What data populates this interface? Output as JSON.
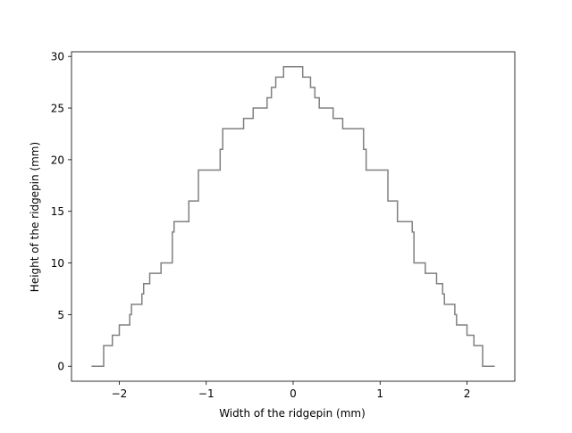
{
  "chart_data": {
    "type": "line",
    "title": "",
    "xlabel": "Width of the ridgepin (mm)",
    "ylabel": "Height of the ridgepin (mm)",
    "xlim": [
      -2.55,
      2.55
    ],
    "ylim": [
      -1.45,
      30.45
    ],
    "xticks": [
      -2,
      -1,
      0,
      1,
      2
    ],
    "xtick_labels": [
      "−2",
      "−1",
      "0",
      "1",
      "2"
    ],
    "yticks": [
      0,
      5,
      10,
      15,
      20,
      25,
      30
    ],
    "ytick_labels": [
      "0",
      "5",
      "10",
      "15",
      "20",
      "25",
      "30"
    ],
    "grid": false,
    "legend": false,
    "colors": {
      "line": "#808080",
      "axes": "#000000",
      "background": "#ffffff"
    },
    "series": [
      {
        "style": "steps",
        "x": [
          -2.32,
          -2.18,
          -2.18,
          -2.08,
          -2.08,
          -2.0,
          -2.0,
          -1.88,
          -1.88,
          -1.86,
          -1.86,
          -1.74,
          -1.74,
          -1.72,
          -1.72,
          -1.65,
          -1.65,
          -1.52,
          -1.52,
          -1.39,
          -1.39,
          -1.37,
          -1.37,
          -1.2,
          -1.2,
          -1.09,
          -1.09,
          -0.84,
          -0.84,
          -0.81,
          -0.81,
          -0.57,
          -0.57,
          -0.46,
          -0.46,
          -0.3,
          -0.3,
          -0.25,
          -0.25,
          -0.2,
          -0.2,
          -0.11,
          -0.11,
          0.11,
          0.11,
          0.2,
          0.2,
          0.25,
          0.25,
          0.3,
          0.3,
          0.46,
          0.46,
          0.57,
          0.57,
          0.81,
          0.81,
          0.84,
          0.84,
          1.09,
          1.09,
          1.2,
          1.2,
          1.37,
          1.37,
          1.39,
          1.39,
          1.52,
          1.52,
          1.65,
          1.65,
          1.72,
          1.72,
          1.74,
          1.74,
          1.86,
          1.86,
          1.88,
          1.88,
          2.0,
          2.0,
          2.08,
          2.08,
          2.18,
          2.18,
          2.32
        ],
        "y": [
          0,
          0,
          2,
          2,
          3,
          3,
          4,
          4,
          5,
          5,
          6,
          6,
          7,
          7,
          8,
          8,
          9,
          9,
          10,
          10,
          13,
          13,
          14,
          14,
          16,
          16,
          19,
          19,
          21,
          21,
          23,
          23,
          24,
          24,
          25,
          25,
          26,
          26,
          27,
          27,
          28,
          28,
          29,
          29,
          28,
          28,
          27,
          27,
          26,
          26,
          25,
          25,
          24,
          24,
          23,
          23,
          21,
          21,
          19,
          19,
          16,
          16,
          14,
          14,
          13,
          13,
          10,
          10,
          9,
          9,
          8,
          8,
          7,
          7,
          6,
          6,
          5,
          5,
          4,
          4,
          3,
          3,
          2,
          2,
          0,
          0
        ]
      }
    ]
  }
}
